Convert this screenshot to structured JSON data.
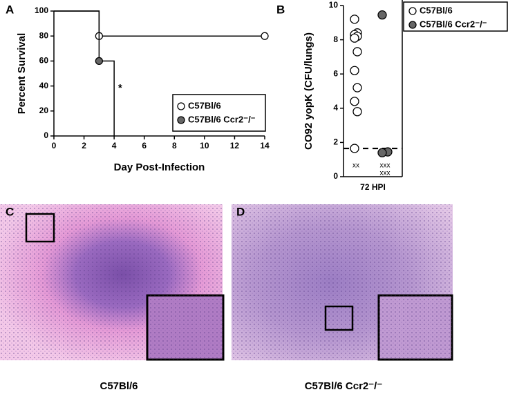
{
  "chart_data": [
    {
      "type": "line",
      "step": true,
      "panel": "A",
      "xlabel": "Day Post-Infection",
      "ylabel": "Percent Survival",
      "xlim": [
        0,
        14
      ],
      "ylim": [
        0,
        100
      ],
      "xticks": [
        0,
        2,
        4,
        6,
        8,
        10,
        12,
        14
      ],
      "yticks": [
        0,
        20,
        40,
        60,
        80,
        100
      ],
      "series": [
        {
          "name": "C57Bl/6",
          "color": "#ffffff",
          "x": [
            0,
            3,
            14
          ],
          "values": [
            100,
            80,
            80
          ],
          "markers": [
            false,
            true,
            true
          ]
        },
        {
          "name": "C57Bl/6 Ccr2⁻/⁻",
          "color": "#666666",
          "x": [
            0,
            3,
            4
          ],
          "values": [
            100,
            60,
            0
          ],
          "markers": [
            false,
            true,
            false
          ]
        }
      ],
      "annotations": [
        {
          "text": "*",
          "x": 4.4,
          "y": 38
        }
      ],
      "legend": "lower right"
    },
    {
      "type": "scatter",
      "panel": "B",
      "ylabel": "CO92 yopK (CFU/lungs)",
      "categories": [
        "72 HPI"
      ],
      "ylim": [
        0,
        10
      ],
      "yticks": [
        0,
        2,
        4,
        6,
        8,
        10
      ],
      "threshold": 1.65,
      "series": [
        {
          "name": "C57Bl/6",
          "color": "#ffffff",
          "values": [
            9.2,
            8.4,
            8.3,
            8.2,
            8.1,
            7.3,
            6.2,
            5.2,
            4.4,
            3.8,
            1.65
          ],
          "below_label": [
            "xx"
          ]
        },
        {
          "name": "C57Bl/6 Ccr2⁻/⁻",
          "color": "#666666",
          "values": [
            9.45,
            1.45,
            1.4
          ],
          "below_label": [
            "xxx",
            "xxx"
          ]
        }
      ],
      "legend": "outside upper right"
    }
  ],
  "images": [
    {
      "panel": "C",
      "caption": "C57Bl/6"
    },
    {
      "panel": "D",
      "caption": "C57Bl/6 Ccr2⁻/⁻"
    }
  ]
}
